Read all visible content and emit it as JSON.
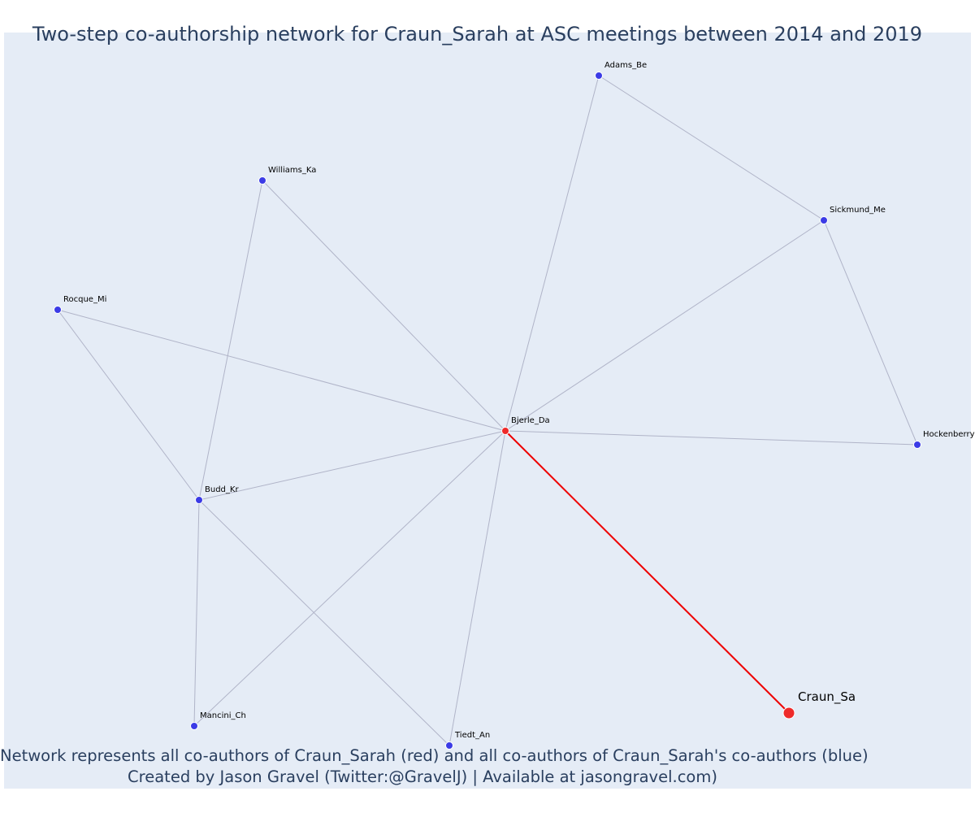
{
  "title": "Two-step co-authorship network for Craun_Sarah at ASC meetings between 2014 and 2019",
  "footer": {
    "line1": "Network represents all co-authors of Craun_Sarah (red) and all co-authors of Craun_Sarah's co-authors (blue)",
    "line2": "Created by Jason Gravel (Twitter:@GravelJ) | Available at jasongravel.com)"
  },
  "colors": {
    "plot_background": "#e5ecf6",
    "edge": "#b0b4c8",
    "focal_edge": "#ee0000",
    "red_node": "#ee2a2a",
    "blue_node": "#3b3be6",
    "text": "#2a3f5f"
  },
  "nodes": [
    {
      "id": "Craun_Sa",
      "label": "Craun_Sa",
      "group": "focal"
    },
    {
      "id": "Bjerle_Da",
      "label": "Bjerle_Da",
      "group": "red"
    },
    {
      "id": "Adams_Be",
      "label": "Adams_Be",
      "group": "blue"
    },
    {
      "id": "Williams_Ka",
      "label": "Williams_Ka",
      "group": "blue"
    },
    {
      "id": "Sickmund_Me",
      "label": "Sickmund_Me",
      "group": "blue"
    },
    {
      "id": "Rocque_Mi",
      "label": "Rocque_Mi",
      "group": "blue"
    },
    {
      "id": "Hockenberry",
      "label": "Hockenberry",
      "group": "blue"
    },
    {
      "id": "Budd_Kr",
      "label": "Budd_Kr",
      "group": "blue"
    },
    {
      "id": "Mancini_Ch",
      "label": "Mancini_Ch",
      "group": "blue"
    },
    {
      "id": "Tiedt_An",
      "label": "Tiedt_An",
      "group": "blue"
    }
  ],
  "edges": [
    {
      "source": "Bjerle_Da",
      "target": "Craun_Sa",
      "focal": true
    },
    {
      "source": "Bjerle_Da",
      "target": "Adams_Be"
    },
    {
      "source": "Bjerle_Da",
      "target": "Williams_Ka"
    },
    {
      "source": "Bjerle_Da",
      "target": "Sickmund_Me"
    },
    {
      "source": "Bjerle_Da",
      "target": "Rocque_Mi"
    },
    {
      "source": "Bjerle_Da",
      "target": "Hockenberry"
    },
    {
      "source": "Bjerle_Da",
      "target": "Budd_Kr"
    },
    {
      "source": "Bjerle_Da",
      "target": "Mancini_Ch"
    },
    {
      "source": "Bjerle_Da",
      "target": "Tiedt_An"
    },
    {
      "source": "Adams_Be",
      "target": "Sickmund_Me"
    },
    {
      "source": "Sickmund_Me",
      "target": "Hockenberry"
    },
    {
      "source": "Williams_Ka",
      "target": "Budd_Kr"
    },
    {
      "source": "Rocque_Mi",
      "target": "Budd_Kr"
    },
    {
      "source": "Budd_Kr",
      "target": "Mancini_Ch"
    },
    {
      "source": "Budd_Kr",
      "target": "Tiedt_An"
    }
  ]
}
